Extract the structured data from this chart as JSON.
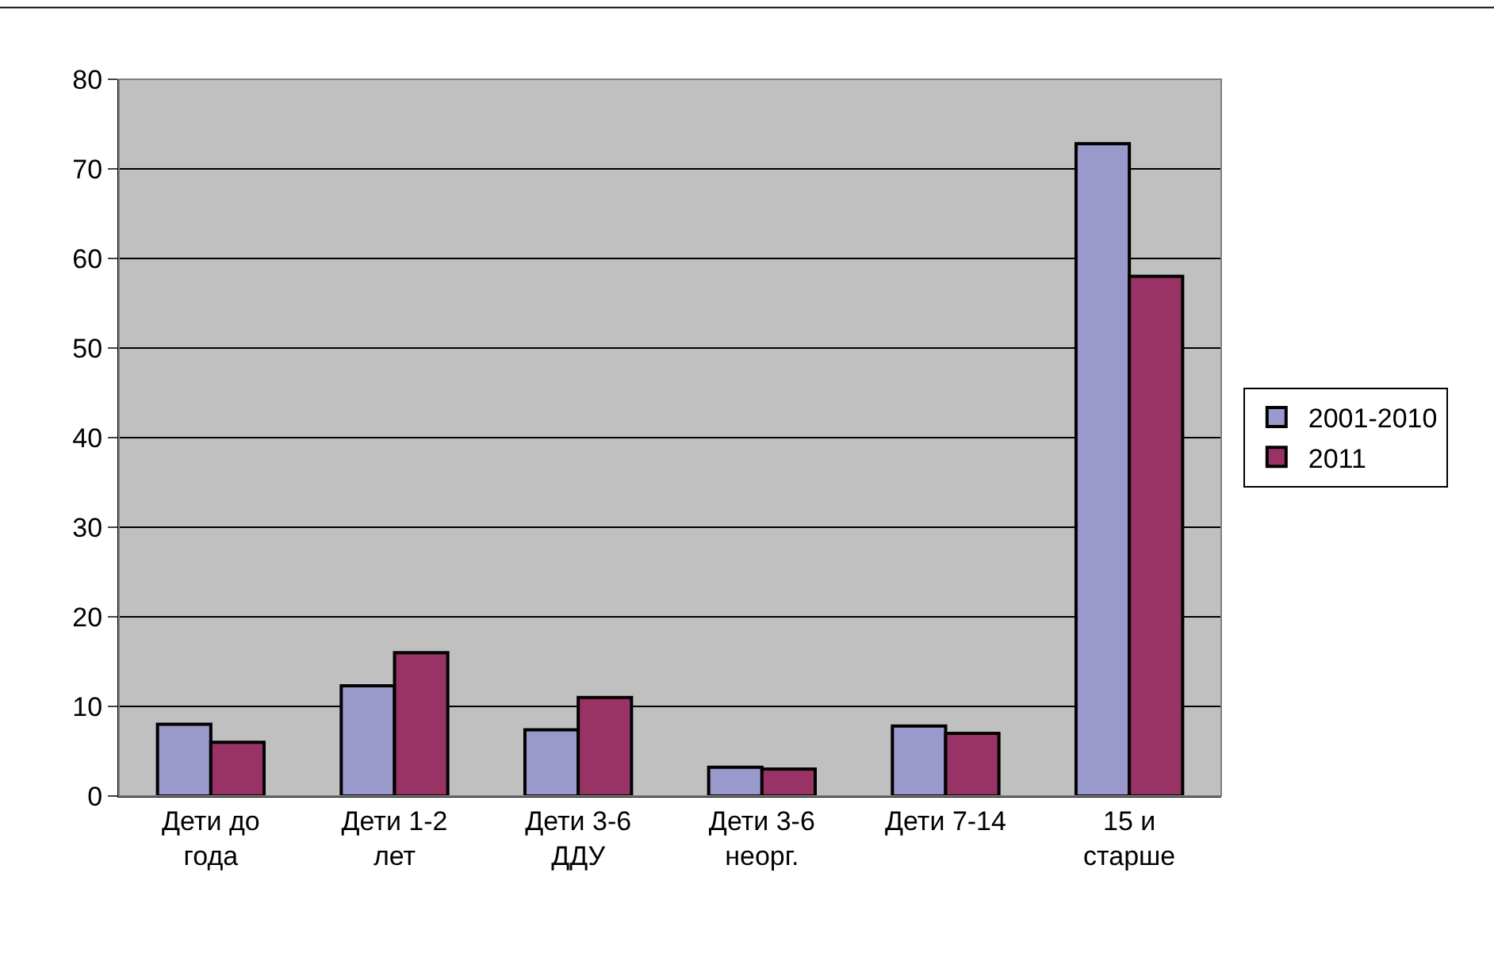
{
  "chart_data": {
    "type": "bar",
    "categories": [
      "Дети до\nгода",
      "Дети 1-2\nлет",
      "Дети 3-6\nДДУ",
      "Дети 3-6\nнеорг.",
      "Дети 7-14",
      "15 и\nстарше"
    ],
    "series": [
      {
        "name": "2001-2010",
        "color": "#9999cc",
        "values": [
          8,
          12.3,
          7.4,
          3.2,
          7.8,
          72.8
        ]
      },
      {
        "name": "2011",
        "color": "#993366",
        "values": [
          6,
          16,
          11,
          3,
          7,
          58
        ]
      }
    ],
    "ylim": [
      0,
      80
    ],
    "yticks": [
      0,
      10,
      20,
      30,
      40,
      50,
      60,
      70,
      80
    ],
    "grid": "y",
    "legend": "right"
  }
}
